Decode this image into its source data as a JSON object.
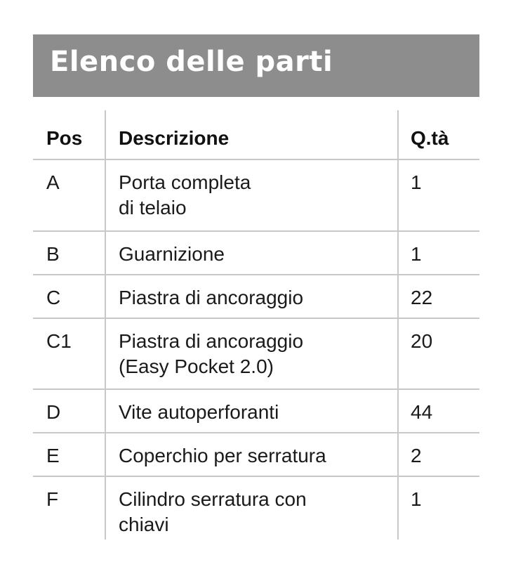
{
  "title": "Elenco delle parti",
  "table": {
    "headers": {
      "pos": "Pos",
      "description": "Descrizione",
      "qty": "Q.tà"
    },
    "rows": [
      {
        "pos": "A",
        "line1": "Porta completa",
        "line2": "di telaio",
        "qty": "1"
      },
      {
        "pos": "B",
        "line1": "Guarnizione",
        "line2": "",
        "qty": "1"
      },
      {
        "pos": "C",
        "line1": "Piastra di ancoraggio",
        "line2": "",
        "qty": "22"
      },
      {
        "pos": "C1",
        "line1": "Piastra di ancoraggio",
        "line2": "(Easy Pocket 2.0)",
        "qty": "20"
      },
      {
        "pos": "D",
        "line1": "Vite autoperforanti",
        "line2": "",
        "qty": "44"
      },
      {
        "pos": "E",
        "line1": "Coperchio per serratura",
        "line2": "",
        "qty": "2"
      },
      {
        "pos": "F",
        "line1": "Cilindro serratura con",
        "line2": "chiavi",
        "qty": "1"
      }
    ]
  },
  "colors": {
    "title_bar": "#8d8d8d",
    "rule": "#c8c8c8"
  }
}
